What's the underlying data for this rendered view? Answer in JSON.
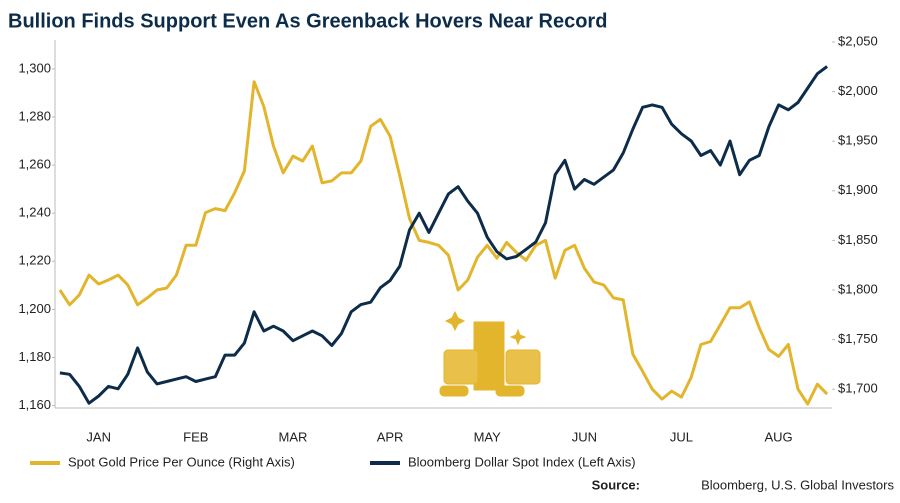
{
  "chart_data": {
    "type": "line",
    "title": "Bullion Finds Support Even As Greenback Hovers Near Record",
    "source_label": "Source:",
    "source": "Bloomberg, U.S. Global Investors",
    "categories": [
      null,
      null,
      null,
      null,
      "JAN",
      null,
      null,
      null,
      null,
      null,
      null,
      null,
      null,
      null,
      "FEB",
      null,
      null,
      null,
      null,
      null,
      null,
      null,
      null,
      null,
      "MAR",
      null,
      null,
      null,
      null,
      null,
      null,
      null,
      null,
      null,
      "APR",
      null,
      null,
      null,
      null,
      null,
      null,
      null,
      null,
      null,
      "MAY",
      null,
      null,
      null,
      null,
      null,
      null,
      null,
      null,
      null,
      "JUN",
      null,
      null,
      null,
      null,
      null,
      null,
      null,
      null,
      null,
      "JUL",
      null,
      null,
      null,
      null,
      null,
      null,
      null,
      null,
      null,
      "AUG",
      null,
      null,
      null,
      null,
      null
    ],
    "series": [
      {
        "name": "Spot Gold Price Per Ounce (Right Axis)",
        "color": "#e3b52c",
        "axis": "y2",
        "values": [
          1800,
          1785,
          1795,
          1815,
          1806,
          1810,
          1815,
          1805,
          1785,
          1792,
          1800,
          1802,
          1815,
          1845,
          1845,
          1878,
          1882,
          1880,
          1898,
          1920,
          2010,
          1985,
          1945,
          1918,
          1935,
          1930,
          1945,
          1908,
          1910,
          1918,
          1918,
          1930,
          1965,
          1972,
          1955,
          1915,
          1872,
          1850,
          1848,
          1845,
          1835,
          1800,
          1810,
          1833,
          1845,
          1832,
          1848,
          1838,
          1830,
          1845,
          1850,
          1812,
          1840,
          1845,
          1822,
          1808,
          1805,
          1792,
          1790,
          1735,
          1718,
          1700,
          1690,
          1698,
          1692,
          1712,
          1745,
          1748,
          1765,
          1782,
          1782,
          1788,
          1762,
          1740,
          1733,
          1745,
          1700,
          1685,
          1705,
          1695
        ]
      },
      {
        "name": "Bloomberg Dollar Spot Index (Left Axis)",
        "color": "#0d2c4a",
        "values": [
          1173.6,
          1173,
          1168,
          1161,
          1164,
          1168,
          1167,
          1173,
          1184,
          1174,
          1169,
          1170,
          1171,
          1172,
          1170,
          1171,
          1172,
          1181,
          1181,
          1186,
          1199,
          1191,
          1193,
          1191,
          1187,
          1189,
          1191,
          1189,
          1185,
          1190,
          1199,
          1202,
          1203,
          1209,
          1212,
          1218,
          1233,
          1240,
          1232,
          1240,
          1248,
          1251,
          1245,
          1240,
          1230,
          1224,
          1221,
          1222,
          1225,
          1228,
          1236,
          1256,
          1262,
          1250,
          1254,
          1252,
          1255,
          1258,
          1265,
          1275,
          1284,
          1285,
          1284,
          1277,
          1273,
          1270,
          1264,
          1266,
          1260,
          1270,
          1256,
          1262,
          1264,
          1276,
          1285,
          1283,
          1286,
          1292,
          1298,
          1301
        ]
      }
    ],
    "ylim": [
      1159,
      1312
    ],
    "yticks": [
      {
        "value": 1160,
        "label": "1,160"
      },
      {
        "value": 1180,
        "label": "1,180"
      },
      {
        "value": 1200,
        "label": "1,200"
      },
      {
        "value": 1220,
        "label": "1,220"
      },
      {
        "value": 1240,
        "label": "1,240"
      },
      {
        "value": 1260,
        "label": "1,260"
      },
      {
        "value": 1280,
        "label": "1,280"
      },
      {
        "value": 1300,
        "label": "1,300"
      }
    ],
    "y2lim": [
      1681,
      2052
    ],
    "y2ticks": [
      {
        "value": 1700,
        "label": "$1,700"
      },
      {
        "value": 1750,
        "label": "$1,750"
      },
      {
        "value": 1800,
        "label": "$1,800"
      },
      {
        "value": 1850,
        "label": "$1,850"
      },
      {
        "value": 1900,
        "label": "$1,900"
      },
      {
        "value": 1950,
        "label": "$1,950"
      },
      {
        "value": 2000,
        "label": "$2,000"
      },
      {
        "value": 2050,
        "label": "$2,050"
      }
    ],
    "grid": false
  }
}
